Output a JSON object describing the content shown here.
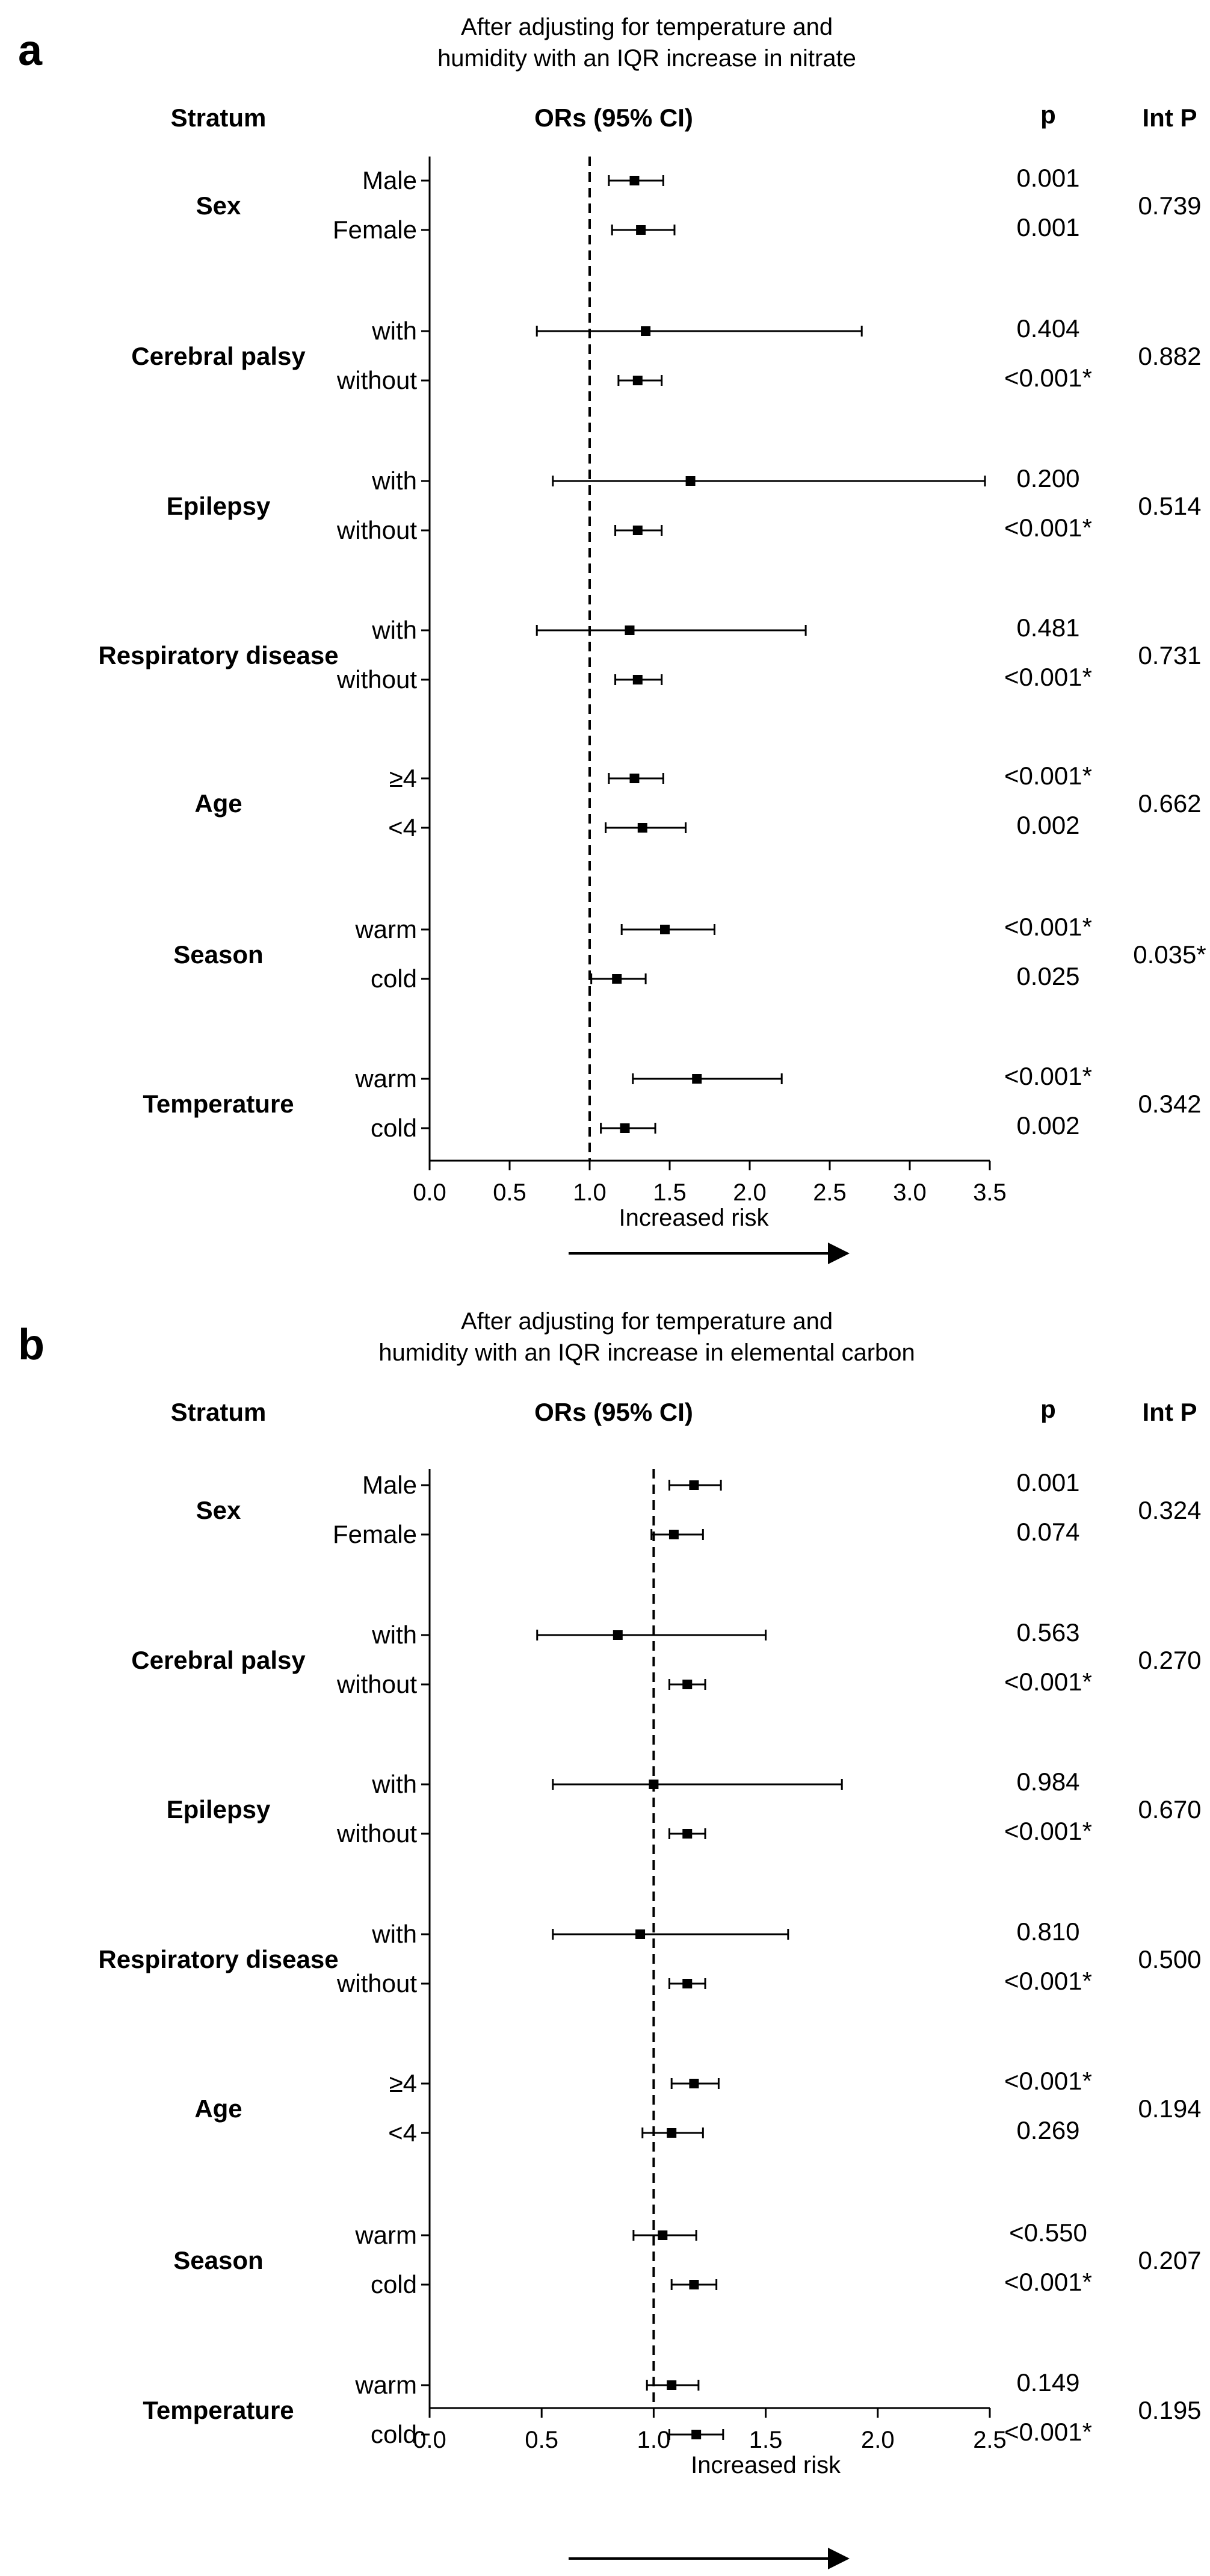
{
  "chart_data": [
    {
      "panel_label": "a",
      "type": "forest",
      "title_lines": [
        "After adjusting for temperature and",
        "humidity with an IQR increase in nitrate"
      ],
      "headers": {
        "stratum": "Stratum",
        "ors": "ORs (95% CI)",
        "p": "p",
        "int_p": "Int P"
      },
      "xlim": [
        0,
        3.5
      ],
      "ticks": [
        0.0,
        0.5,
        1.0,
        1.5,
        2.0,
        2.5,
        3.0,
        3.5
      ],
      "tick_labels": [
        "0.0",
        "0.5",
        "1.0",
        "1.5",
        "2.0",
        "2.5",
        "3.0",
        "3.5"
      ],
      "reference_line": 1.0,
      "xlabel": "Increased risk",
      "groups": [
        {
          "name": "Sex",
          "int_p": "0.739",
          "rows": [
            {
              "label": "Male",
              "or": 1.28,
              "lo": 1.12,
              "hi": 1.46,
              "p": "0.001"
            },
            {
              "label": "Female",
              "or": 1.32,
              "lo": 1.14,
              "hi": 1.53,
              "p": "0.001"
            }
          ]
        },
        {
          "name": "Cerebral palsy",
          "int_p": "0.882",
          "rows": [
            {
              "label": "with",
              "or": 1.35,
              "lo": 0.67,
              "hi": 2.7,
              "p": "0.404"
            },
            {
              "label": "without",
              "or": 1.3,
              "lo": 1.18,
              "hi": 1.45,
              "p": "<0.001*"
            }
          ]
        },
        {
          "name": "Epilepsy",
          "int_p": "0.514",
          "rows": [
            {
              "label": "with",
              "or": 1.63,
              "lo": 0.77,
              "hi": 3.47,
              "p": "0.200"
            },
            {
              "label": "without",
              "or": 1.3,
              "lo": 1.16,
              "hi": 1.45,
              "p": "<0.001*"
            }
          ]
        },
        {
          "name": "Respiratory disease",
          "int_p": "0.731",
          "rows": [
            {
              "label": "with",
              "or": 1.25,
              "lo": 0.67,
              "hi": 2.35,
              "p": "0.481"
            },
            {
              "label": "without",
              "or": 1.3,
              "lo": 1.16,
              "hi": 1.45,
              "p": "<0.001*"
            }
          ]
        },
        {
          "name": "Age",
          "int_p": "0.662",
          "rows": [
            {
              "label": "≥4",
              "or": 1.28,
              "lo": 1.12,
              "hi": 1.46,
              "p": "<0.001*"
            },
            {
              "label": "<4",
              "or": 1.33,
              "lo": 1.1,
              "hi": 1.6,
              "p": "0.002"
            }
          ]
        },
        {
          "name": "Season",
          "int_p": "0.035*",
          "rows": [
            {
              "label": "warm",
              "or": 1.47,
              "lo": 1.2,
              "hi": 1.78,
              "p": "<0.001*"
            },
            {
              "label": "cold",
              "or": 1.17,
              "lo": 1.01,
              "hi": 1.35,
              "p": "0.025"
            }
          ]
        },
        {
          "name": "Temperature",
          "int_p": "0.342",
          "rows": [
            {
              "label": "warm",
              "or": 1.67,
              "lo": 1.27,
              "hi": 2.2,
              "p": "<0.001*"
            },
            {
              "label": "cold",
              "or": 1.22,
              "lo": 1.07,
              "hi": 1.41,
              "p": "0.002"
            }
          ]
        }
      ]
    },
    {
      "panel_label": "b",
      "type": "forest",
      "title_lines": [
        "After adjusting for temperature and",
        "humidity with an IQR increase in elemental carbon"
      ],
      "headers": {
        "stratum": "Stratum",
        "ors": "ORs (95% CI)",
        "p": "p",
        "int_p": "Int P"
      },
      "xlim": [
        0,
        2.5
      ],
      "ticks": [
        0.0,
        0.5,
        1.0,
        1.5,
        2.0,
        2.5
      ],
      "tick_labels": [
        "0.0",
        "0.5",
        "1.0",
        "1.5",
        "2.0",
        "2.5"
      ],
      "reference_line": 1.0,
      "xlabel": "Increased risk",
      "groups": [
        {
          "name": "Sex",
          "int_p": "0.324",
          "rows": [
            {
              "label": "Male",
              "or": 1.18,
              "lo": 1.07,
              "hi": 1.3,
              "p": "0.001"
            },
            {
              "label": "Female",
              "or": 1.09,
              "lo": 0.99,
              "hi": 1.22,
              "p": "0.074"
            }
          ]
        },
        {
          "name": "Cerebral palsy",
          "int_p": "0.270",
          "rows": [
            {
              "label": "with",
              "or": 0.84,
              "lo": 0.48,
              "hi": 1.5,
              "p": "0.563"
            },
            {
              "label": "without",
              "or": 1.15,
              "lo": 1.07,
              "hi": 1.23,
              "p": "<0.001*"
            }
          ]
        },
        {
          "name": "Epilepsy",
          "int_p": "0.670",
          "rows": [
            {
              "label": "with",
              "or": 1.0,
              "lo": 0.55,
              "hi": 1.84,
              "p": "0.984"
            },
            {
              "label": "without",
              "or": 1.15,
              "lo": 1.07,
              "hi": 1.23,
              "p": "<0.001*"
            }
          ]
        },
        {
          "name": "Respiratory disease",
          "int_p": "0.500",
          "rows": [
            {
              "label": "with",
              "or": 0.94,
              "lo": 0.55,
              "hi": 1.6,
              "p": "0.810"
            },
            {
              "label": "without",
              "or": 1.15,
              "lo": 1.07,
              "hi": 1.23,
              "p": "<0.001*"
            }
          ]
        },
        {
          "name": "Age",
          "int_p": "0.194",
          "rows": [
            {
              "label": "≥4",
              "or": 1.18,
              "lo": 1.08,
              "hi": 1.29,
              "p": "<0.001*"
            },
            {
              "label": "<4",
              "or": 1.08,
              "lo": 0.95,
              "hi": 1.22,
              "p": "0.269"
            }
          ]
        },
        {
          "name": "Season",
          "int_p": "0.207",
          "rows": [
            {
              "label": "warm",
              "or": 1.04,
              "lo": 0.91,
              "hi": 1.19,
              "p": "<0.550"
            },
            {
              "label": "cold",
              "or": 1.18,
              "lo": 1.08,
              "hi": 1.28,
              "p": "<0.001*"
            }
          ]
        },
        {
          "name": "Temperature",
          "int_p": "0.195",
          "rows": [
            {
              "label": "warm",
              "or": 1.08,
              "lo": 0.97,
              "hi": 1.2,
              "p": "0.149"
            },
            {
              "label": "cold",
              "or": 1.19,
              "lo": 1.07,
              "hi": 1.31,
              "p": "<0.001*"
            }
          ]
        }
      ]
    }
  ]
}
